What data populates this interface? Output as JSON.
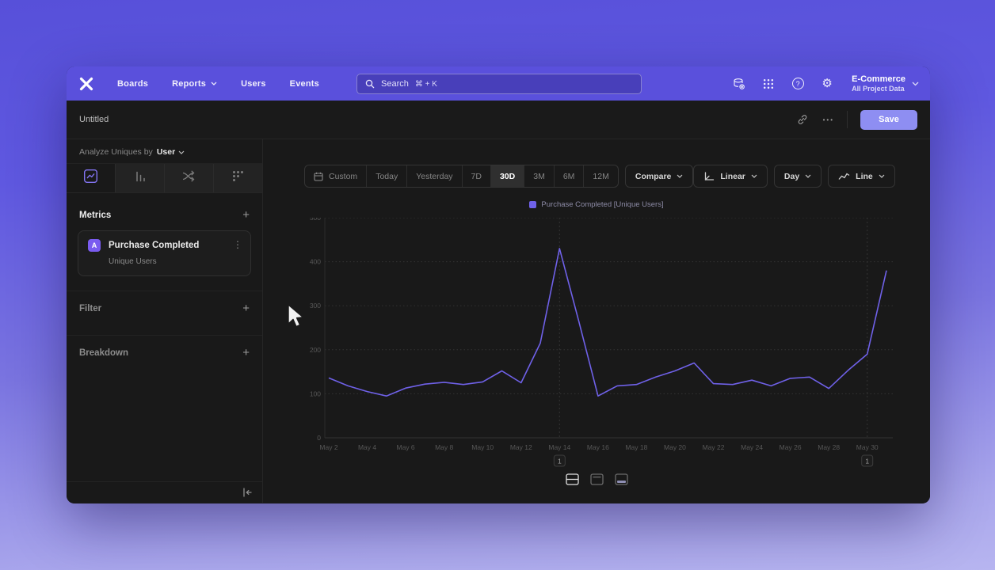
{
  "nav": {
    "logo_icon": "mixpanel-x-logo",
    "items": [
      {
        "label": "Boards"
      },
      {
        "label": "Reports",
        "has_chevron": true
      },
      {
        "label": "Users"
      },
      {
        "label": "Events"
      }
    ],
    "search": {
      "placeholder": "Search",
      "shortcut": "⌘ + K",
      "icon": "search-icon"
    },
    "right_icons": [
      "data-management-icon",
      "apps-grid-icon",
      "help-icon",
      "settings-gear-icon"
    ],
    "project": {
      "name": "E-Commerce",
      "scope": "All Project Data"
    }
  },
  "toolbar": {
    "title": "Untitled",
    "link_icon": "link-icon",
    "more_label": "•••",
    "save_label": "Save"
  },
  "sidebar": {
    "analyze_label": "Analyze Uniques by",
    "analyze_value": "User",
    "tabs": [
      "insights",
      "funnels",
      "flows",
      "retention"
    ],
    "active_tab": "insights",
    "metrics": {
      "header": "Metrics",
      "add_label": "+"
    },
    "metric_item": {
      "badge": "A",
      "name": "Purchase Completed",
      "subtitle": "Unique Users",
      "menu": "⋮"
    },
    "filter": {
      "header": "Filter",
      "add_label": "+"
    },
    "breakdown": {
      "header": "Breakdown",
      "add_label": "+"
    },
    "collapse_icon": "collapse-sidebar-icon"
  },
  "controls": {
    "calendar_icon": "calendar-icon",
    "date_ranges": [
      "Custom",
      "Today",
      "Yesterday",
      "7D",
      "30D",
      "3M",
      "6M",
      "12M"
    ],
    "selected_range": "30D",
    "compare_label": "Compare",
    "scale_label": "Linear",
    "granularity_label": "Day",
    "chart_type_label": "Line"
  },
  "chart_data": {
    "type": "line",
    "legend": "Purchase Completed [Unique Users]",
    "line_color": "#6f61e8",
    "ylim": [
      0,
      500
    ],
    "y_ticks": [
      0,
      100,
      200,
      300,
      400,
      500
    ],
    "grid": "dotted-horizontal",
    "tick_every": 2,
    "x": [
      "May 2",
      "May 3",
      "May 4",
      "May 5",
      "May 6",
      "May 7",
      "May 8",
      "May 9",
      "May 10",
      "May 11",
      "May 12",
      "May 13",
      "May 14",
      "May 15",
      "May 16",
      "May 17",
      "May 18",
      "May 19",
      "May 20",
      "May 21",
      "May 22",
      "May 23",
      "May 24",
      "May 25",
      "May 26",
      "May 27",
      "May 28",
      "May 29",
      "May 30",
      "May 31"
    ],
    "values": [
      136,
      118,
      105,
      95,
      113,
      122,
      126,
      121,
      127,
      152,
      125,
      215,
      430,
      265,
      95,
      118,
      121,
      138,
      152,
      170,
      123,
      121,
      131,
      118,
      135,
      138,
      112,
      153,
      190,
      380
    ],
    "annotations": [
      {
        "index": 12,
        "x": "May 14",
        "label": "1"
      },
      {
        "index": 28,
        "x": "May 30",
        "label": "1"
      }
    ]
  },
  "footer": {
    "layout_icons": [
      "layout-split-horizontal-icon",
      "layout-panel-top-icon",
      "layout-panel-bottom-icon"
    ],
    "active_layout": 0
  }
}
